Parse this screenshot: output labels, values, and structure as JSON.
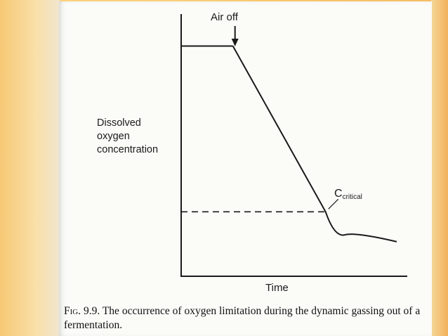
{
  "chart_data": {
    "type": "line",
    "ylabel_lines": [
      "Dissolved",
      "oxygen",
      "concentration"
    ],
    "xlabel": "Time",
    "annotations": {
      "air_off": "Air off",
      "c_main": "C",
      "c_sub": "critical"
    },
    "series": [
      {
        "x": [
          0,
          0.24,
          0.67,
          0.76,
          1.0
        ],
        "y": [
          1.0,
          1.0,
          0.28,
          0.18,
          0.15
        ]
      }
    ],
    "critical_level": 0.28,
    "air_off_time": 0.24,
    "xlim": [
      0,
      1
    ],
    "ylim": [
      0,
      1.2
    ],
    "grid": false
  },
  "caption": {
    "fig_label": "Fig. 9.9.",
    "text": "The occurrence of oxygen limitation during the dynamic gassing out of a fermentation."
  }
}
